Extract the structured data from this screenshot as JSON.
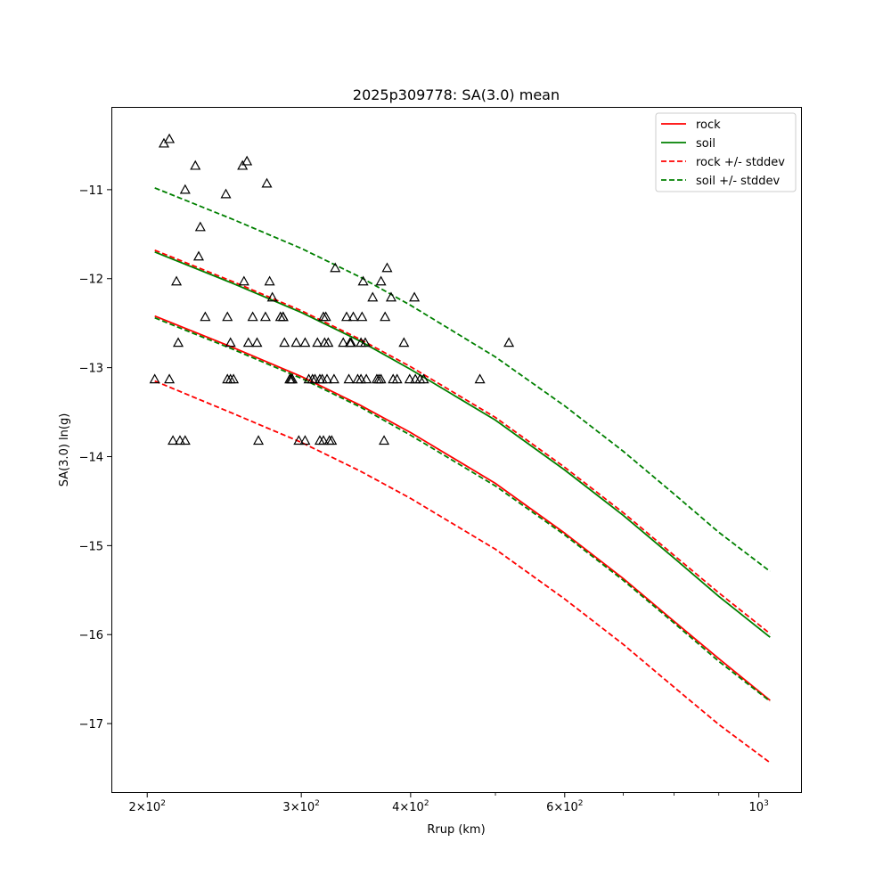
{
  "chart_data": {
    "type": "scatter",
    "title": "2025p309778: SA(3.0) mean",
    "xlabel": "Rrup (km)",
    "ylabel": "SA(3.0) ln(g)",
    "xscale": "log",
    "xlim": [
      182,
      1120
    ],
    "ylim": [
      -17.78,
      -10.07
    ],
    "grid": false,
    "legend_position": "top-right",
    "x_ticks": [
      {
        "value": 200,
        "base": "2×10",
        "exp": "2"
      },
      {
        "value": 300,
        "base": "3×10",
        "exp": "2"
      },
      {
        "value": 400,
        "base": "4×10",
        "exp": "2"
      },
      {
        "value": 600,
        "base": "6×10",
        "exp": "2"
      },
      {
        "value": 1000,
        "base": "10",
        "exp": "3"
      }
    ],
    "x_minor_ticks": [
      500,
      700,
      800,
      900
    ],
    "y_ticks": [
      {
        "value": -11,
        "label": "−11"
      },
      {
        "value": -12,
        "label": "−12"
      },
      {
        "value": -13,
        "label": "−13"
      },
      {
        "value": -14,
        "label": "−14"
      },
      {
        "value": -15,
        "label": "−15"
      },
      {
        "value": -16,
        "label": "−16"
      },
      {
        "value": -17,
        "label": "−17"
      }
    ],
    "series": [
      {
        "name": "rock",
        "kind": "line",
        "color": "#ff0000",
        "dash": "solid",
        "x": [
          204,
          250,
          300,
          350,
          400,
          500,
          600,
          700,
          800,
          900,
          1030
        ],
        "y": [
          -12.42,
          -12.77,
          -13.1,
          -13.42,
          -13.73,
          -14.3,
          -14.86,
          -15.37,
          -15.85,
          -16.27,
          -16.74
        ]
      },
      {
        "name": "soil",
        "kind": "line",
        "color": "#008000",
        "dash": "solid",
        "x": [
          204,
          250,
          300,
          350,
          400,
          500,
          600,
          700,
          800,
          900,
          1030
        ],
        "y": [
          -11.7,
          -12.05,
          -12.38,
          -12.7,
          -13.02,
          -13.59,
          -14.15,
          -14.66,
          -15.14,
          -15.57,
          -16.03
        ]
      },
      {
        "name": "rock +/- stddev",
        "kind": "line",
        "color": "#ff0000",
        "dash": "dashed",
        "x": [
          204,
          250,
          300,
          350,
          400,
          500,
          600,
          700,
          800,
          900,
          1030
        ],
        "y": [
          -11.68,
          -12.03,
          -12.36,
          -12.68,
          -12.99,
          -13.56,
          -14.12,
          -14.63,
          -15.11,
          -15.53,
          -15.99
        ]
      },
      {
        "name": "",
        "kind": "line",
        "color": "#ff0000",
        "dash": "dashed",
        "x": [
          204,
          250,
          300,
          350,
          400,
          500,
          600,
          700,
          800,
          900,
          1030
        ],
        "y": [
          -13.15,
          -13.51,
          -13.84,
          -14.16,
          -14.47,
          -15.04,
          -15.6,
          -16.11,
          -16.59,
          -17.01,
          -17.44
        ]
      },
      {
        "name": "soil +/- stddev",
        "kind": "line",
        "color": "#008000",
        "dash": "dashed",
        "x": [
          204,
          250,
          300,
          350,
          400,
          500,
          600,
          700,
          800,
          900,
          1030
        ],
        "y": [
          -10.98,
          -11.33,
          -11.66,
          -11.98,
          -12.3,
          -12.88,
          -13.43,
          -13.94,
          -14.42,
          -14.85,
          -15.29
        ]
      },
      {
        "name": "",
        "kind": "line",
        "color": "#008000",
        "dash": "dashed",
        "x": [
          204,
          250,
          300,
          350,
          400,
          500,
          600,
          700,
          800,
          900,
          1030
        ],
        "y": [
          -12.44,
          -12.79,
          -13.12,
          -13.44,
          -13.76,
          -14.33,
          -14.88,
          -15.39,
          -15.87,
          -16.3,
          -16.75
        ]
      }
    ],
    "observations": {
      "marker": "triangle",
      "color": "#000000",
      "x": [
        209,
        212,
        214,
        218,
        221,
        217,
        227,
        230,
        212,
        204,
        216,
        221,
        229,
        233,
        249,
        258,
        261,
        246,
        249,
        257,
        260,
        264,
        267,
        273,
        276,
        247,
        247,
        251,
        274,
        278,
        284,
        286,
        287,
        291,
        292,
        298,
        303,
        318,
        318,
        320,
        268,
        286,
        293,
        296,
        303,
        306,
        309,
        311,
        313,
        315,
        315,
        317,
        319,
        321,
        322,
        323,
        325,
        327,
        328,
        335,
        338,
        340,
        341,
        342,
        344,
        348,
        351,
        351,
        353,
        355,
        352,
        356,
        362,
        366,
        368,
        374,
        380,
        376,
        370,
        373,
        382,
        386,
        393,
        399,
        404,
        410,
        405,
        414,
        480,
        518,
        370
      ],
      "y": [
        -10.48,
        -10.43,
        -13.82,
        -13.82,
        -11.0,
        -12.72,
        -10.73,
        -11.42,
        -13.13,
        -13.13,
        -12.03,
        -13.82,
        -11.75,
        -12.43,
        -12.72,
        -12.03,
        -12.72,
        -11.05,
        -13.13,
        -10.73,
        -10.68,
        -12.43,
        -12.72,
        -12.43,
        -12.03,
        -12.43,
        -13.13,
        -13.13,
        -10.93,
        -12.21,
        -12.43,
        -12.43,
        -12.72,
        -13.13,
        -13.13,
        -13.82,
        -12.72,
        -13.82,
        -12.43,
        -12.43,
        -13.82,
        -12.43,
        -13.13,
        -12.72,
        -13.82,
        -13.13,
        -13.13,
        -13.13,
        -12.72,
        -13.13,
        -13.82,
        -13.13,
        -12.72,
        -13.13,
        -12.72,
        -13.82,
        -13.82,
        -13.13,
        -11.88,
        -12.72,
        -12.43,
        -13.13,
        -12.72,
        -12.72,
        -12.43,
        -13.13,
        -13.13,
        -12.72,
        -12.03,
        -12.72,
        -12.43,
        -13.13,
        -12.21,
        -13.13,
        -13.13,
        -12.43,
        -12.21,
        -11.88,
        -12.03,
        -13.82,
        -13.13,
        -13.13,
        -12.72,
        -13.13,
        -12.21,
        -13.13,
        -13.13,
        -13.13,
        -13.13,
        -12.72,
        -13.13
      ]
    }
  },
  "legend": {
    "items": [
      {
        "label": "rock",
        "color": "#ff0000",
        "dash": "solid"
      },
      {
        "label": "soil",
        "color": "#008000",
        "dash": "solid"
      },
      {
        "label": "rock +/- stddev",
        "color": "#ff0000",
        "dash": "dashed"
      },
      {
        "label": "soil +/- stddev",
        "color": "#008000",
        "dash": "dashed"
      }
    ]
  }
}
